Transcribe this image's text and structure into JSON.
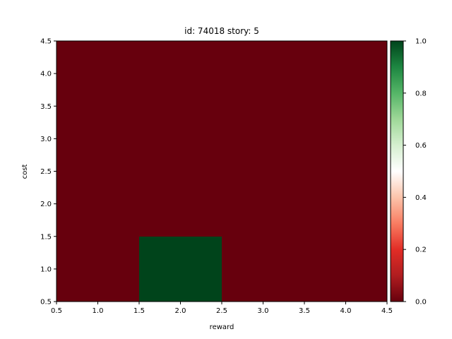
{
  "chart_data": {
    "type": "heatmap",
    "title": "id: 74018 story: 5",
    "xlabel": "reward",
    "ylabel": "cost",
    "x": [
      1,
      2,
      3,
      4
    ],
    "y": [
      1,
      2,
      3,
      4
    ],
    "xlim": [
      0.5,
      4.5
    ],
    "ylim": [
      0.5,
      4.5
    ],
    "xticks": [
      "0.5",
      "1.0",
      "1.5",
      "2.0",
      "2.5",
      "3.0",
      "3.5",
      "4.0",
      "4.5"
    ],
    "yticks": [
      "0.5",
      "1.0",
      "1.5",
      "2.0",
      "2.5",
      "3.0",
      "3.5",
      "4.0",
      "4.5"
    ],
    "values": [
      [
        0,
        1,
        0,
        0
      ],
      [
        0,
        0,
        0,
        0
      ],
      [
        0,
        0,
        0,
        0
      ],
      [
        0,
        0,
        0,
        0
      ]
    ],
    "colormap": "RdYlGn-like (red low, white mid, green high)",
    "colorbar": {
      "range": [
        0.0,
        1.0
      ],
      "ticks": [
        "0.0",
        "0.2",
        "0.4",
        "0.6",
        "0.8",
        "1.0"
      ],
      "color_low": "#67000d",
      "color_mid": "#ffffff",
      "color_high": "#00441b"
    }
  }
}
